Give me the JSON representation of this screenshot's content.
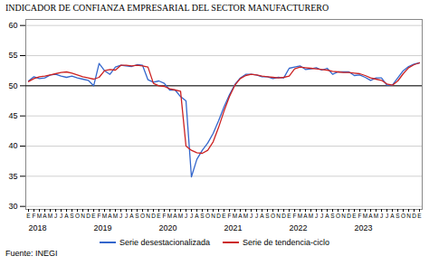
{
  "chart_data": {
    "type": "line",
    "title": "INDICADOR DE CONFIANZA EMPRESARIAL DEL SECTOR MANUFACTURERO",
    "categories": [
      "E",
      "F",
      "M",
      "A",
      "M",
      "J",
      "J",
      "A",
      "S",
      "O",
      "N",
      "D",
      "E",
      "F",
      "M",
      "A",
      "M",
      "J",
      "J",
      "A",
      "S",
      "O",
      "N",
      "D",
      "E",
      "F",
      "M",
      "A",
      "M",
      "J",
      "J",
      "A",
      "S",
      "O",
      "N",
      "D",
      "E",
      "F",
      "M",
      "A",
      "M",
      "J",
      "J",
      "A",
      "S",
      "O",
      "N",
      "D",
      "E",
      "F",
      "M",
      "A",
      "M",
      "J",
      "J",
      "A",
      "S",
      "O",
      "N",
      "D",
      "E",
      "F",
      "M",
      "A",
      "M",
      "J",
      "J",
      "A",
      "S",
      "O",
      "N",
      "D",
      "E"
    ],
    "series": [
      {
        "name": "Serie desestacionalizada",
        "color": "#3366cc",
        "values": [
          50.8,
          51.5,
          51.2,
          51.3,
          51.8,
          51.9,
          51.6,
          51.4,
          51.6,
          51.3,
          51.1,
          50.9,
          50.0,
          53.7,
          52.5,
          51.9,
          53.1,
          53.4,
          53.3,
          53.2,
          53.5,
          53.4,
          51.0,
          50.6,
          50.8,
          50.4,
          49.3,
          49.3,
          48.2,
          47.5,
          34.9,
          37.8,
          39.3,
          40.5,
          42.1,
          44.2,
          46.5,
          48.5,
          50.2,
          51.3,
          51.9,
          51.9,
          51.8,
          51.5,
          51.5,
          51.2,
          51.4,
          51.3,
          52.9,
          53.1,
          53.3,
          52.7,
          52.8,
          53.0,
          52.6,
          52.9,
          51.9,
          52.3,
          52.3,
          52.3,
          51.7,
          51.8,
          51.4,
          50.9,
          51.3,
          51.3,
          50.1,
          50.1,
          51.3,
          52.5,
          53.2,
          53.6,
          53.8
        ]
      },
      {
        "name": "Serie de tendencia-ciclo",
        "color": "#cc2222",
        "values": [
          50.7,
          51.2,
          51.5,
          51.6,
          51.8,
          52.0,
          52.2,
          52.3,
          52.1,
          51.8,
          51.5,
          51.3,
          51.1,
          51.4,
          52.5,
          52.7,
          52.6,
          53.4,
          53.4,
          53.3,
          53.4,
          53.3,
          53.1,
          50.4,
          50.0,
          49.9,
          49.5,
          49.3,
          49.1,
          40.0,
          39.3,
          38.9,
          38.8,
          39.3,
          40.7,
          43.1,
          45.8,
          48.2,
          50.1,
          51.2,
          51.7,
          51.9,
          51.8,
          51.6,
          51.5,
          51.4,
          51.3,
          51.4,
          51.6,
          52.8,
          53.1,
          53.0,
          52.9,
          52.8,
          52.7,
          52.6,
          52.4,
          52.3,
          52.2,
          52.2,
          52.1,
          52.0,
          51.7,
          51.3,
          51.1,
          50.9,
          50.3,
          50.1,
          50.8,
          52.0,
          53.0,
          53.5,
          53.8
        ]
      }
    ],
    "ylim": [
      29.5,
      61
    ],
    "yticks": [
      30,
      35,
      40,
      45,
      50,
      55,
      60
    ],
    "grid": true,
    "legend": "bottom",
    "hline": {
      "y": 50,
      "color": "#000000"
    },
    "annotations": [
      {
        "text": "2018",
        "x": 0
      },
      {
        "text": "2019",
        "x": 12
      },
      {
        "text": "2020",
        "x": 24
      },
      {
        "text": "2021",
        "x": 36
      },
      {
        "text": "2022",
        "x": 48
      },
      {
        "text": "2023",
        "x": 60
      },
      {
        "text": "Fuente: INEGI"
      }
    ]
  }
}
